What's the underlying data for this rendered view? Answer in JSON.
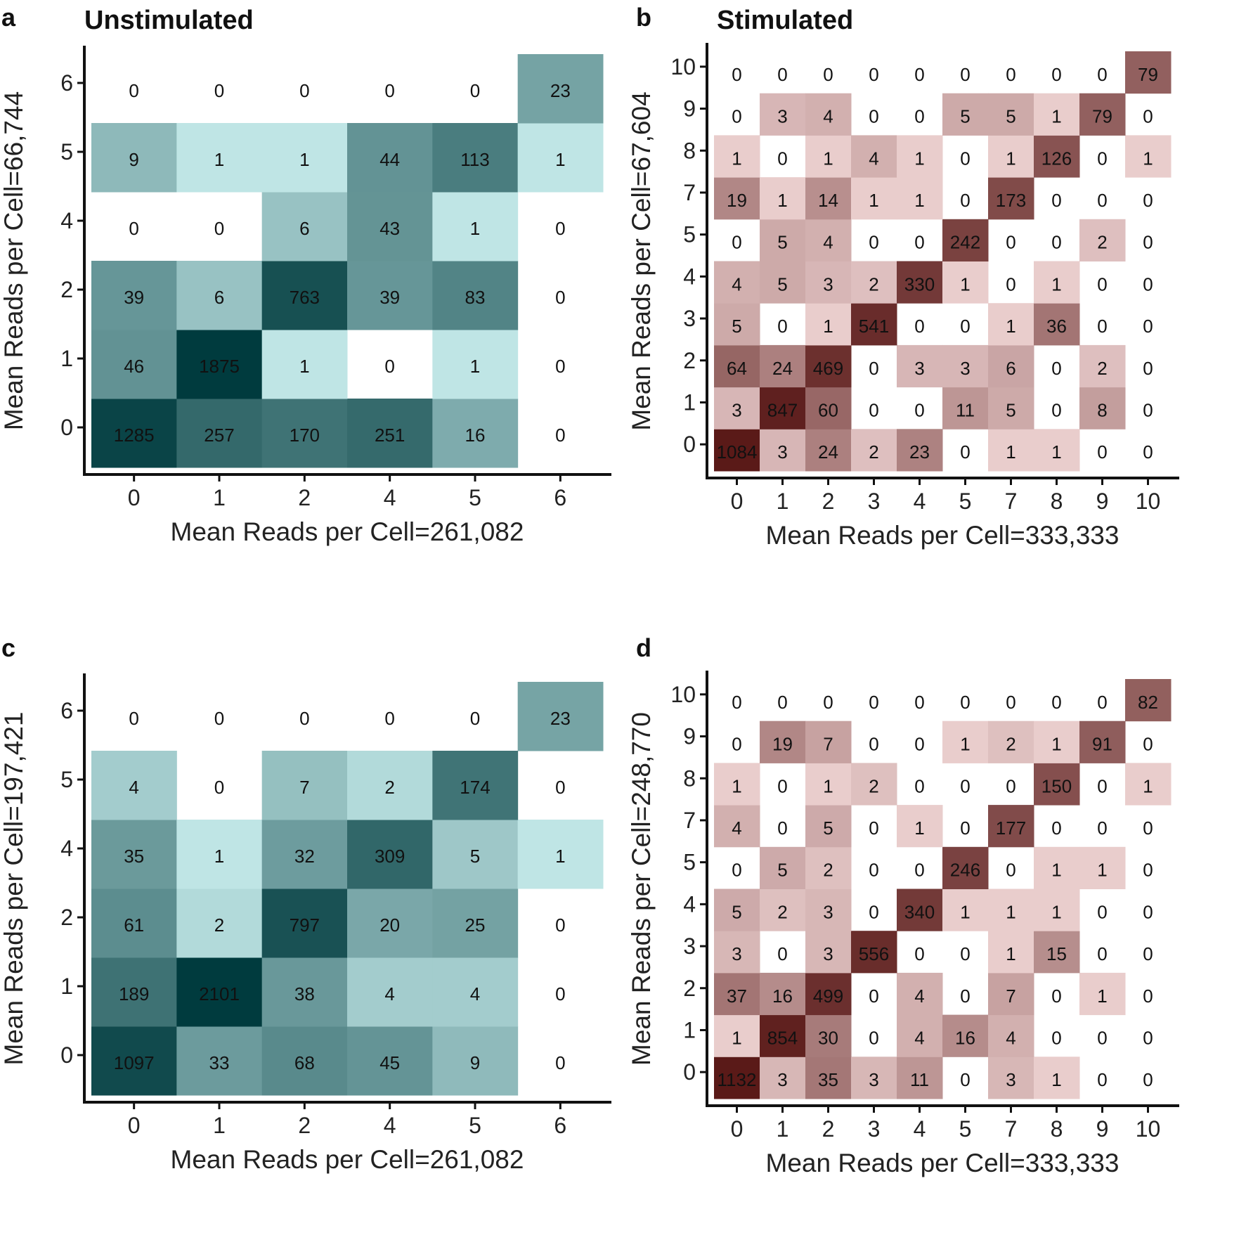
{
  "chart_data": [
    {
      "type": "heatmap",
      "panel": "a",
      "title": "Unstimulated",
      "xlabel": "Mean Reads per Cell=261,082",
      "ylabel": "Mean Reads per Cell=66,744",
      "x_categories": [
        "0",
        "1",
        "2",
        "4",
        "5",
        "6"
      ],
      "y_categories": [
        "0",
        "1",
        "2",
        "4",
        "5",
        "6"
      ],
      "values": [
        [
          1285,
          257,
          170,
          251,
          16,
          0
        ],
        [
          46,
          1875,
          1,
          0,
          1,
          0
        ],
        [
          39,
          6,
          763,
          39,
          83,
          0
        ],
        [
          0,
          0,
          6,
          43,
          1,
          0
        ],
        [
          9,
          1,
          1,
          44,
          113,
          1
        ],
        [
          0,
          0,
          0,
          0,
          0,
          23
        ]
      ],
      "colors": {
        "low": "#d8fbfb",
        "high": "#003b3e"
      }
    },
    {
      "type": "heatmap",
      "panel": "b",
      "title": "Stimulated",
      "xlabel": "Mean Reads per Cell=333,333",
      "ylabel": "Mean Reads per Cell=67,604",
      "x_categories": [
        "0",
        "1",
        "2",
        "3",
        "4",
        "5",
        "7",
        "8",
        "9",
        "10"
      ],
      "y_categories": [
        "0",
        "1",
        "2",
        "3",
        "4",
        "5",
        "7",
        "8",
        "9",
        "10"
      ],
      "values": [
        [
          1084,
          3,
          24,
          2,
          23,
          0,
          1,
          1,
          0,
          0
        ],
        [
          3,
          847,
          60,
          0,
          0,
          11,
          5,
          0,
          8,
          0
        ],
        [
          64,
          24,
          469,
          0,
          3,
          3,
          6,
          0,
          2,
          0
        ],
        [
          5,
          0,
          1,
          541,
          0,
          0,
          1,
          36,
          0,
          0
        ],
        [
          4,
          5,
          3,
          2,
          330,
          1,
          0,
          1,
          0,
          0
        ],
        [
          0,
          5,
          4,
          0,
          0,
          242,
          0,
          0,
          2,
          0
        ],
        [
          19,
          1,
          14,
          1,
          1,
          0,
          173,
          0,
          0,
          0
        ],
        [
          1,
          0,
          1,
          4,
          1,
          0,
          1,
          126,
          0,
          1
        ],
        [
          0,
          3,
          4,
          0,
          0,
          5,
          5,
          1,
          79,
          0
        ],
        [
          0,
          0,
          0,
          0,
          0,
          0,
          0,
          0,
          0,
          79
        ]
      ],
      "colors": {
        "low": "#fde6e6",
        "high": "#5a1a18"
      }
    },
    {
      "type": "heatmap",
      "panel": "c",
      "title": "",
      "xlabel": "Mean Reads per Cell=261,082",
      "ylabel": "Mean Reads per Cell=197,421",
      "x_categories": [
        "0",
        "1",
        "2",
        "4",
        "5",
        "6"
      ],
      "y_categories": [
        "0",
        "1",
        "2",
        "4",
        "5",
        "6"
      ],
      "values": [
        [
          1097,
          33,
          68,
          45,
          9,
          0
        ],
        [
          189,
          2101,
          38,
          4,
          4,
          0
        ],
        [
          61,
          2,
          797,
          20,
          25,
          0
        ],
        [
          35,
          1,
          32,
          309,
          5,
          1
        ],
        [
          4,
          0,
          7,
          2,
          174,
          0
        ],
        [
          0,
          0,
          0,
          0,
          0,
          23
        ]
      ],
      "colors": {
        "low": "#d8fbfb",
        "high": "#003b3e"
      }
    },
    {
      "type": "heatmap",
      "panel": "d",
      "title": "",
      "xlabel": "Mean Reads per Cell=333,333",
      "ylabel": "Mean Reads per Cell=248,770",
      "x_categories": [
        "0",
        "1",
        "2",
        "3",
        "4",
        "5",
        "7",
        "8",
        "9",
        "10"
      ],
      "y_categories": [
        "0",
        "1",
        "2",
        "3",
        "4",
        "5",
        "7",
        "8",
        "9",
        "10"
      ],
      "values": [
        [
          1132,
          3,
          35,
          3,
          11,
          0,
          3,
          1,
          0,
          0
        ],
        [
          1,
          854,
          30,
          0,
          4,
          16,
          4,
          0,
          0,
          0
        ],
        [
          37,
          16,
          499,
          0,
          4,
          0,
          7,
          0,
          1,
          0
        ],
        [
          3,
          0,
          3,
          556,
          0,
          0,
          1,
          15,
          0,
          0
        ],
        [
          5,
          2,
          3,
          0,
          340,
          1,
          1,
          1,
          0,
          0
        ],
        [
          0,
          5,
          2,
          0,
          0,
          246,
          0,
          1,
          1,
          0
        ],
        [
          4,
          0,
          5,
          0,
          1,
          0,
          177,
          0,
          0,
          0
        ],
        [
          1,
          0,
          1,
          2,
          0,
          0,
          0,
          150,
          0,
          1
        ],
        [
          0,
          19,
          7,
          0,
          0,
          1,
          2,
          1,
          91,
          0
        ],
        [
          0,
          0,
          0,
          0,
          0,
          0,
          0,
          0,
          0,
          82
        ]
      ],
      "colors": {
        "low": "#fde6e6",
        "high": "#5a1a18"
      }
    }
  ],
  "panel_letters": [
    "a",
    "b",
    "c",
    "d"
  ]
}
